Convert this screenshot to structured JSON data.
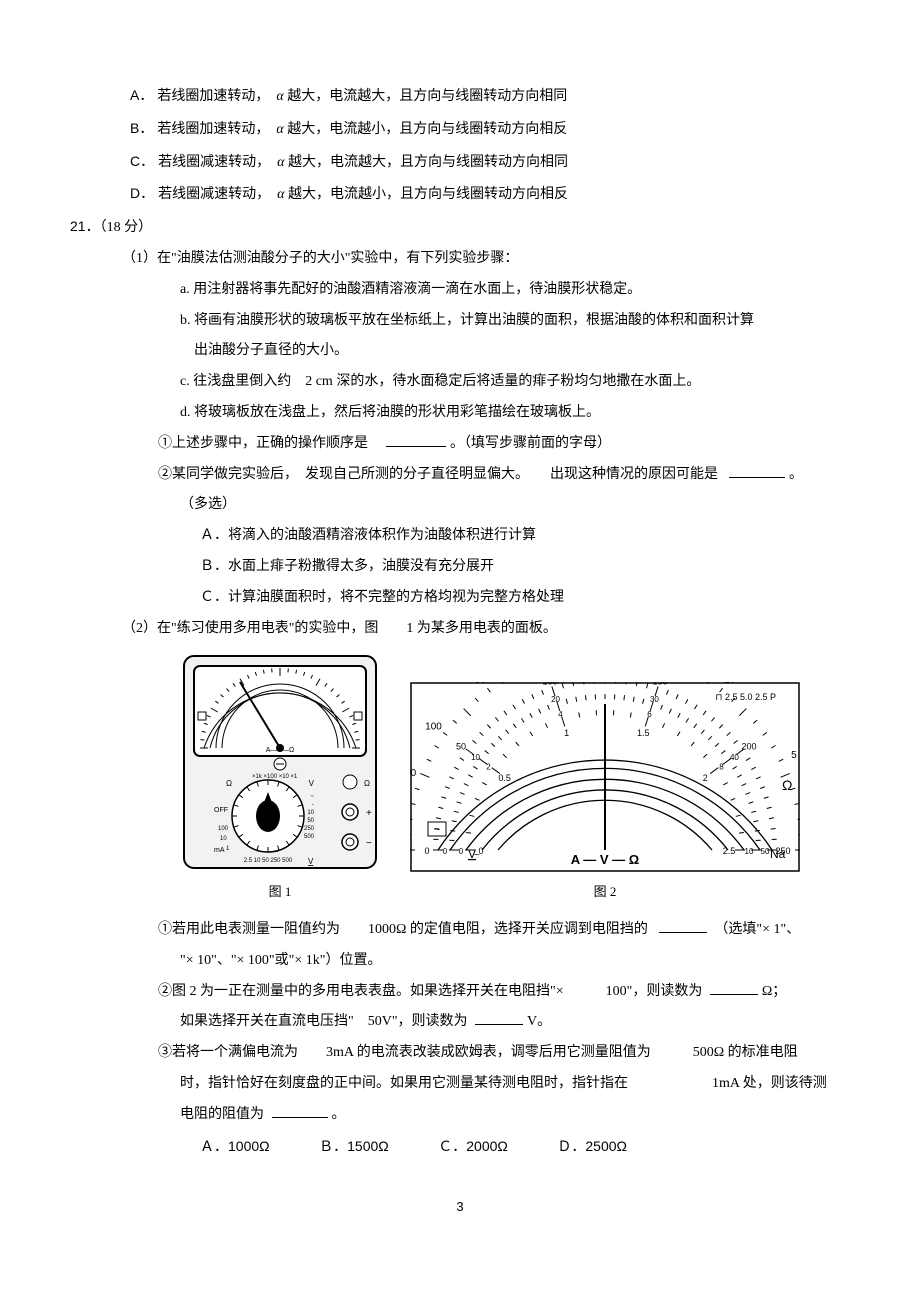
{
  "q20_options": {
    "A": "若线圈加速转动，",
    "A_tail": " 越大，电流越大，且方向与线圈转动方向相同",
    "B": "若线圈加速转动，",
    "B_tail": " 越大，电流越小，且方向与线圈转动方向相反",
    "C": "若线圈减速转动，",
    "C_tail": " 越大，电流越大，且方向与线圈转动方向相同",
    "D": "若线圈减速转动，",
    "D_tail": " 越大，电流越小，且方向与线圈转动方向相反",
    "alpha": "α"
  },
  "q21": {
    "number": "21．",
    "score": "（18 分）",
    "part1": {
      "header": "（1）在\"油膜法估测油酸分子的大小\"实验中，有下列实验步骤：",
      "a": "a. 用注射器将事先配好的油酸酒精溶液滴一滴在水面上，待油膜形状稳定。",
      "b": "b. 将画有油膜形状的玻璃板平放在坐标纸上，计算出油膜的面积，根据油酸的体积和面积计算",
      "b2": "出油酸分子直径的大小。",
      "c": "c. 往浅盘里倒入约　2 cm 深的水，待水面稳定后将适量的痱子粉均匀地撒在水面上。",
      "d": "d. 将玻璃板放在浅盘上，然后将油膜的形状用彩笔描绘在玻璃板上。",
      "sub1_pre": "①上述步骤中，正确的操作顺序是",
      "sub1_post": "。（填写步骤前面的字母）",
      "sub2_pre": "②某同学做完实验后，　发现自己所测的分子直径明显偏大。　　出现这种情况的原因可能是",
      "sub2_post": "。",
      "sub2_note": "（多选）",
      "optA": "Ａ．将滴入的油酸酒精溶液体积作为油酸体积进行计算",
      "optB": "Ｂ．水面上痱子粉撒得太多，油膜没有充分展开",
      "optC": "Ｃ．计算油膜面积时，将不完整的方格均视为完整方格处理"
    },
    "part2": {
      "header": "（2）在\"练习使用多用电表\"的实验中，图　　1 为某多用电表的面板。",
      "fig1_caption": "图 1",
      "fig2_caption": "图 2",
      "sub1_pre": "①若用此电表测量一阻值约为　　1000Ω 的定值电阻，选择开关应调到电阻挡的",
      "sub1_post": "（选填\"×  1\"、",
      "sub1_line2": "\"× 10\"、\"× 100\"或\"×  1k\"）位置。",
      "sub2_pre": "②图 2 为一正在测量中的多用电表表盘。如果选择开关在电阻挡\"×　　　100\"，则读数为",
      "sub2_mid": "Ω；",
      "sub2_line2_pre": "如果选择开关在直流电压挡\"　50V\"，则读数为",
      "sub2_line2_post": "V。",
      "sub3_l1": "③若将一个满偏电流为　　3mA 的电流表改装成欧姆表，调零后用它测量阻值为　　　500Ω 的标准电阻",
      "sub3_l2": "时，指针恰好在刻度盘的正中间。如果用它测量某待测电阻时，指针指在　　　　　　1mA 处，则该待测",
      "sub3_l3_pre": "电阻的阻值为",
      "sub3_l3_post": "。",
      "ansA": "Ａ．1000Ω",
      "ansB": "Ｂ．1500Ω",
      "ansC": "Ｃ．2000Ω",
      "ansD": "Ｄ．2500Ω"
    }
  },
  "page_number": "3",
  "fig2": {
    "ohm_ticks": [
      "1k",
      "500",
      "200",
      "100",
      "50",
      "40",
      "30",
      "20",
      "15",
      "10",
      "5",
      "0"
    ],
    "mid_ticks": [
      "0",
      "50",
      "100",
      "150",
      "200",
      "250"
    ],
    "mid_ticks2": [
      "0",
      "10",
      "20",
      "30",
      "40",
      "50"
    ],
    "low_ticks": [
      "0",
      "2",
      "4",
      "6",
      "8",
      "10"
    ],
    "bot_ticks": [
      "0",
      "0.5",
      "1",
      "1.5",
      "2",
      "2.5"
    ],
    "corner": "2.5 5.0 2.5",
    "left_sym": "~",
    "v_label": "V",
    "omega_label": "Ω",
    "na_label": "Na",
    "bottom_label": "A — V — Ω",
    "colors": {
      "stroke": "#000000",
      "bg": "#ffffff"
    }
  },
  "fig1": {
    "dial_labels": [
      "OFF",
      "mA",
      "Ω",
      "V",
      "V"
    ],
    "ohm_range": [
      "×1k",
      "×100",
      "×10",
      "×1"
    ],
    "ma_range": [
      "100",
      "10",
      "1"
    ],
    "v_range_right": [
      "~",
      "-",
      "10",
      "50",
      "250",
      "500"
    ],
    "v_bottom": [
      "2.5",
      "10",
      "50",
      "250",
      "500"
    ],
    "legend": "A—V—Ω",
    "omega": "Ω",
    "plus": "+",
    "minus": "−",
    "colors": {
      "stroke": "#000000",
      "fill": "#ffffff",
      "shadow": "#e8e8e8"
    }
  }
}
